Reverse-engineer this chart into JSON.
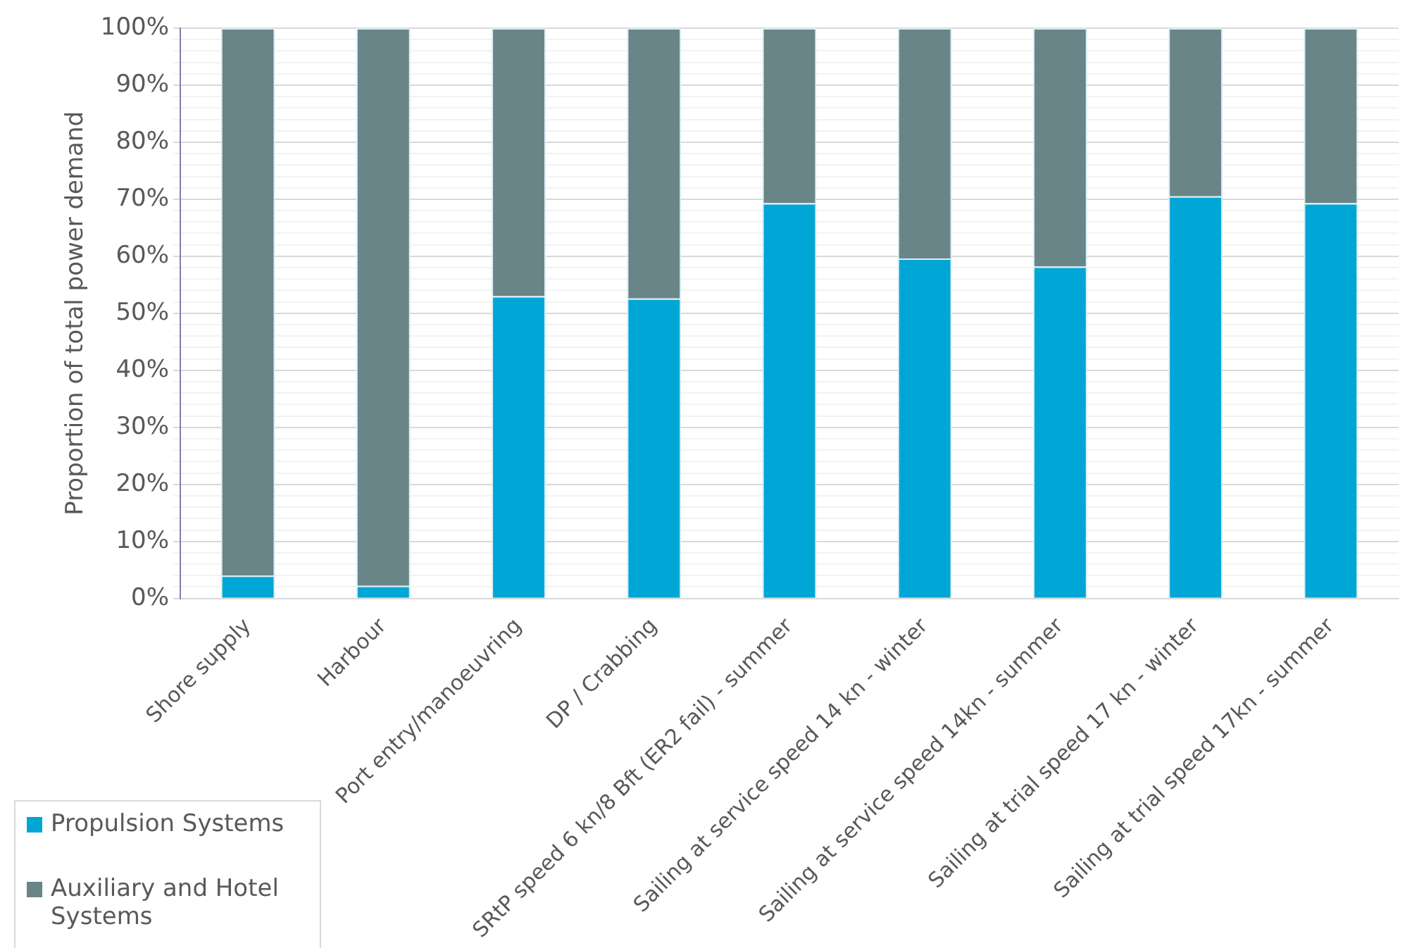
{
  "chart_data": {
    "type": "bar",
    "stacked": true,
    "ylabel": "Proportion of total power demand",
    "categories": [
      "Shore supply",
      "Harbour",
      "Port entry/manoeuvring",
      "DP / Crabbing",
      "SRtP speed 6 kn/8 Bft (ER2 fail) - summer",
      "Sailing at service speed 14 kn - winter",
      "Sailing at service speed 14kn - summer",
      "Sailing at trial speed 17 kn - winter",
      "Sailing at trial speed 17kn - summer"
    ],
    "series": [
      {
        "name": "Propulsion Systems",
        "color": "#00a6d6",
        "values": [
          4.0,
          2.2,
          53.0,
          52.6,
          69.3,
          59.6,
          58.2,
          70.5,
          69.3
        ]
      },
      {
        "name": "Auxiliary and Hotel Systems",
        "color": "#6a8587",
        "values": [
          96.0,
          97.8,
          47.0,
          47.4,
          30.7,
          40.4,
          41.8,
          29.5,
          30.7
        ]
      }
    ],
    "ylim": [
      0,
      100
    ],
    "yticks": [
      {
        "value": 0,
        "label": "0%"
      },
      {
        "value": 2,
        "label": null
      },
      {
        "value": 4,
        "label": null
      },
      {
        "value": 6,
        "label": null
      },
      {
        "value": 8,
        "label": null
      },
      {
        "value": 10,
        "label": "10%"
      },
      {
        "value": 12,
        "label": null
      },
      {
        "value": 14,
        "label": null
      },
      {
        "value": 16,
        "label": null
      },
      {
        "value": 18,
        "label": null
      },
      {
        "value": 20,
        "label": "20%"
      },
      {
        "value": 22,
        "label": null
      },
      {
        "value": 24,
        "label": null
      },
      {
        "value": 26,
        "label": null
      },
      {
        "value": 28,
        "label": null
      },
      {
        "value": 30,
        "label": "30%"
      },
      {
        "value": 32,
        "label": null
      },
      {
        "value": 34,
        "label": null
      },
      {
        "value": 36,
        "label": null
      },
      {
        "value": 38,
        "label": null
      },
      {
        "value": 40,
        "label": "40%"
      },
      {
        "value": 42,
        "label": null
      },
      {
        "value": 44,
        "label": null
      },
      {
        "value": 46,
        "label": null
      },
      {
        "value": 48,
        "label": null
      },
      {
        "value": 50,
        "label": "50%"
      },
      {
        "value": 52,
        "label": null
      },
      {
        "value": 54,
        "label": null
      },
      {
        "value": 56,
        "label": null
      },
      {
        "value": 58,
        "label": null
      },
      {
        "value": 60,
        "label": "60%"
      },
      {
        "value": 62,
        "label": null
      },
      {
        "value": 64,
        "label": null
      },
      {
        "value": 66,
        "label": null
      },
      {
        "value": 68,
        "label": null
      },
      {
        "value": 70,
        "label": "70%"
      },
      {
        "value": 72,
        "label": null
      },
      {
        "value": 74,
        "label": null
      },
      {
        "value": 76,
        "label": null
      },
      {
        "value": 78,
        "label": null
      },
      {
        "value": 80,
        "label": "80%"
      },
      {
        "value": 82,
        "label": null
      },
      {
        "value": 84,
        "label": null
      },
      {
        "value": 86,
        "label": null
      },
      {
        "value": 88,
        "label": null
      },
      {
        "value": 90,
        "label": "90%"
      },
      {
        "value": 92,
        "label": null
      },
      {
        "value": 94,
        "label": null
      },
      {
        "value": 96,
        "label": null
      },
      {
        "value": 98,
        "label": null
      },
      {
        "value": 100,
        "label": "100%"
      }
    ],
    "grid": "y",
    "legend": "bottom left"
  }
}
